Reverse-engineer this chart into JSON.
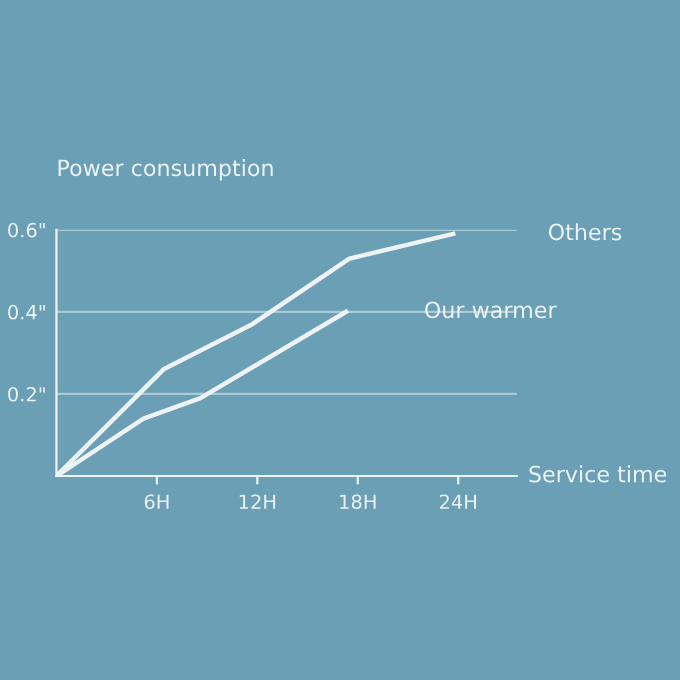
{
  "chart_data": {
    "type": "line",
    "ylabel": "Power consumption",
    "xlabel": "Service time",
    "xlim": [
      0,
      27.5
    ],
    "xticks": [
      {
        "value": 6,
        "label": "6H"
      },
      {
        "value": 12,
        "label": "12H"
      },
      {
        "value": 18,
        "label": "18H"
      },
      {
        "value": 24,
        "label": "24H"
      }
    ],
    "ylim": [
      0,
      0.6
    ],
    "yticks": [
      {
        "value": 0.2,
        "label": "0.2\""
      },
      {
        "value": 0.4,
        "label": "0.4\""
      },
      {
        "value": 0.6,
        "label": "0.6\""
      }
    ],
    "grid": "y",
    "marker": "none",
    "line_style": "solid",
    "series": [
      {
        "name": "Others",
        "color": "#eef3f5",
        "x": [
          0,
          6.4,
          11.7,
          17.5,
          23.7
        ],
        "values": [
          0,
          0.26,
          0.37,
          0.53,
          0.59
        ]
      },
      {
        "name": "Our warmer",
        "color": "#eef3f5",
        "x": [
          0,
          5.2,
          8.6,
          17.3
        ],
        "values": [
          0,
          0.14,
          0.19,
          0.4
        ]
      }
    ]
  }
}
